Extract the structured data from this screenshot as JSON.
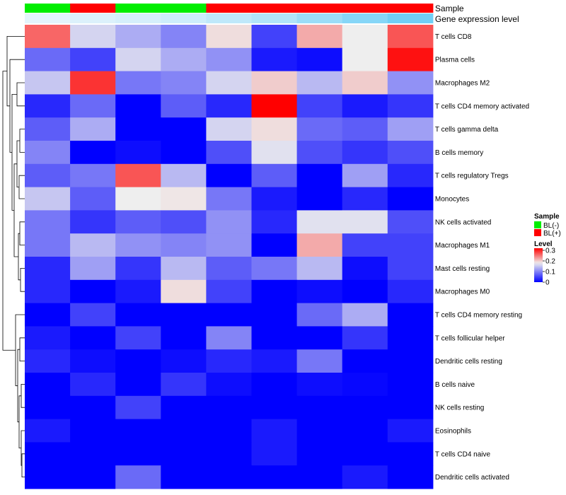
{
  "chart_data": {
    "type": "heatmap",
    "annotation_rows": [
      {
        "name": "Sample",
        "values": [
          "BL(-)",
          "BL(+)",
          "BL(-)",
          "BL(-)",
          "BL(+)",
          "BL(+)",
          "BL(+)",
          "BL(+)",
          "BL(+)"
        ]
      },
      {
        "name": "Gene expression level",
        "values": [
          0.05,
          0.1,
          0.15,
          0.2,
          0.3,
          0.4,
          0.55,
          0.7,
          0.85
        ]
      }
    ],
    "rows": [
      "T cells CD8",
      "Plasma cells",
      "Macrophages M2",
      "T cells CD4 memory activated",
      "T cells gamma delta",
      "B cells memory",
      "T cells regulatory  Tregs",
      "Monocytes",
      "NK cells activated",
      "Macrophages M1",
      "Mast cells resting",
      "Macrophages M0",
      "T cells CD4 memory resting",
      "T cells follicular helper",
      "Dendritic cells resting",
      "B cells naive",
      "NK cells resting",
      "Eosinophils",
      "T cells CD4 naive",
      "Dendritic cells activated"
    ],
    "values": [
      [
        0.26,
        0.16,
        0.13,
        0.1,
        0.19,
        0.05,
        0.22,
        0.18,
        0.27
      ],
      [
        0.08,
        0.05,
        0.16,
        0.13,
        0.11,
        0.02,
        0.01,
        0.18,
        0.31
      ],
      [
        0.15,
        0.29,
        0.09,
        0.1,
        0.16,
        0.2,
        0.14,
        0.2,
        0.11
      ],
      [
        0.03,
        0.08,
        0.0,
        0.07,
        0.03,
        0.32,
        0.05,
        0.02,
        0.04
      ],
      [
        0.07,
        0.13,
        0.0,
        0.0,
        0.16,
        0.19,
        0.08,
        0.07,
        0.12
      ],
      [
        0.1,
        0.0,
        0.01,
        0.0,
        0.06,
        0.17,
        0.06,
        0.04,
        0.06
      ],
      [
        0.07,
        0.09,
        0.27,
        0.14,
        0.0,
        0.07,
        0.0,
        0.12,
        0.03
      ],
      [
        0.15,
        0.07,
        0.18,
        0.185,
        0.09,
        0.02,
        0.0,
        0.03,
        0.0
      ],
      [
        0.09,
        0.04,
        0.07,
        0.06,
        0.11,
        0.03,
        0.17,
        0.17,
        0.06
      ],
      [
        0.09,
        0.14,
        0.11,
        0.1,
        0.11,
        0.0,
        0.22,
        0.05,
        0.05
      ],
      [
        0.03,
        0.12,
        0.04,
        0.14,
        0.07,
        0.09,
        0.14,
        0.01,
        0.05
      ],
      [
        0.03,
        0.0,
        0.02,
        0.19,
        0.05,
        0.0,
        0.01,
        0.0,
        0.03
      ],
      [
        0.0,
        0.05,
        0.0,
        0.0,
        0.0,
        0.0,
        0.08,
        0.13,
        0.0
      ],
      [
        0.02,
        0.0,
        0.05,
        0.0,
        0.1,
        0.0,
        0.0,
        0.04,
        0.0
      ],
      [
        0.03,
        0.01,
        0.0,
        0.01,
        0.03,
        0.02,
        0.09,
        0.0,
        0.0
      ],
      [
        0.0,
        0.03,
        0.0,
        0.04,
        0.01,
        0.0,
        0.01,
        0.005,
        0.0
      ],
      [
        0.0,
        0.0,
        0.05,
        0.0,
        0.0,
        0.0,
        0.0,
        0.0,
        0.0
      ],
      [
        0.02,
        0.0,
        0.0,
        0.0,
        0.0,
        0.02,
        0.0,
        0.0,
        0.02
      ],
      [
        0.0,
        0.0,
        0.0,
        0.0,
        0.0,
        0.02,
        0.0,
        0.0,
        0.0
      ],
      [
        0.0,
        0.0,
        0.08,
        0.0,
        0.0,
        0.0,
        0.0,
        0.02,
        0.0
      ]
    ],
    "color_scale": {
      "low": "#0000ff",
      "mid": "#eeeeee",
      "high": "#ff0000",
      "min": 0,
      "mid_value": 0.18,
      "max": 0.32
    },
    "legend": {
      "sample_title": "Sample",
      "sample_entries": [
        {
          "label": "BL(-)",
          "color": "#00ee00"
        },
        {
          "label": "BL(+)",
          "color": "#ff0000"
        }
      ],
      "level_title": "Level",
      "level_ticks": [
        "0.3",
        "0.2",
        "0.1",
        "0"
      ],
      "level_tick_values": [
        0.3,
        0.2,
        0.1,
        0
      ],
      "placement": "right"
    },
    "annotation_colors": {
      "expression_low": "#eaf6fc",
      "expression_high": "#5bc8f5"
    },
    "row_dendrogram": true,
    "grid": false
  }
}
